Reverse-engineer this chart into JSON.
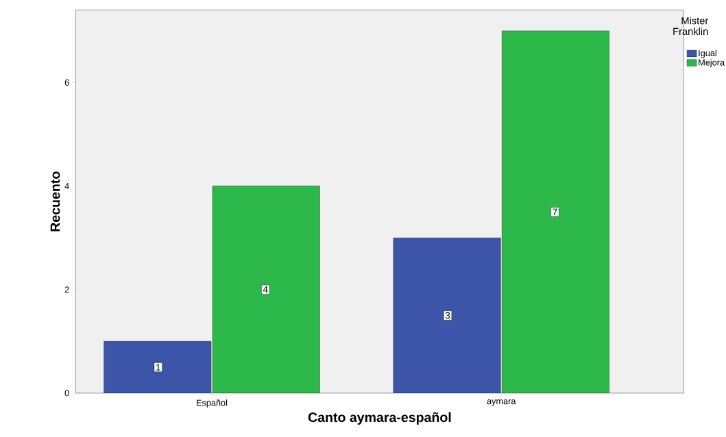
{
  "chart_data": {
    "type": "bar",
    "xlabel": "Canto aymara-español",
    "ylabel": "Recuento",
    "legend_title": "Mister Franklin",
    "categories": [
      "Español",
      "aymara"
    ],
    "series": [
      {
        "name": "Igual",
        "color": "#3c55a8",
        "values": [
          1,
          3
        ]
      },
      {
        "name": "Mejora",
        "color": "#2db84a",
        "values": [
          4,
          7
        ]
      }
    ],
    "ylim": [
      0,
      7.4
    ],
    "yticks": [
      0,
      2,
      4,
      6
    ],
    "grid": false,
    "legend": "top right",
    "data_labels": true
  }
}
